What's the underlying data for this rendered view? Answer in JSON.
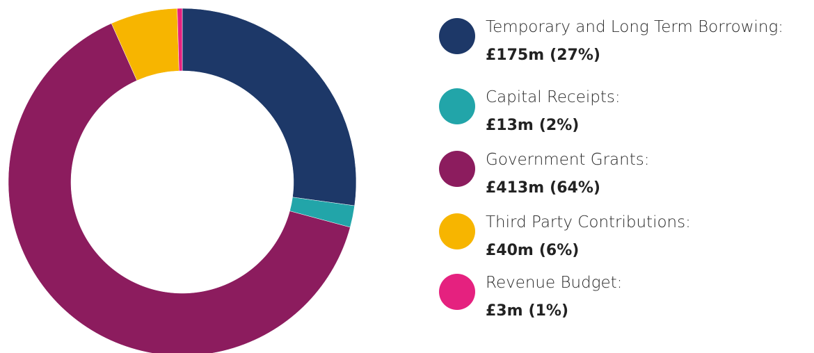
{
  "chart_data": {
    "type": "donut",
    "categories": [
      "Temporary and Long Term Borrowing:",
      "Capital Receipts:",
      "Government Grants:",
      "Third Party Contributions:",
      "Revenue Budget:"
    ],
    "values": [
      175,
      13,
      413,
      40,
      3
    ],
    "value_labels": [
      "£175m",
      "£13m",
      "£413m",
      "£40m",
      "£3m"
    ],
    "percent_labels": [
      "(27%)",
      "(2%)",
      "(64%)",
      "(6%)",
      "(1%)"
    ],
    "colors": [
      "#1d3868",
      "#22a5a9",
      "#8c1c5e",
      "#f7b500",
      "#e5217f"
    ]
  }
}
